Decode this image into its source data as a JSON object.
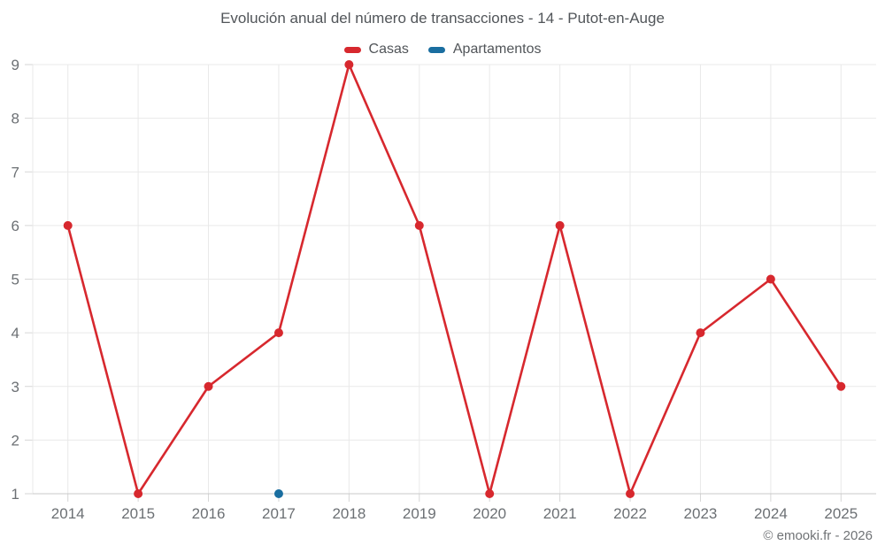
{
  "header": {
    "title": "Evolución anual del número de transacciones - 14 - Putot-en-Auge"
  },
  "legend": {
    "items": [
      {
        "label": "Casas",
        "color": "#d7282e"
      },
      {
        "label": "Apartamentos",
        "color": "#1a6ea0"
      }
    ]
  },
  "chart_data": {
    "type": "line",
    "title": "Evolución anual del número de transacciones - 14 - Putot-en-Auge",
    "categories": [
      "2014",
      "2015",
      "2016",
      "2017",
      "2018",
      "2019",
      "2020",
      "2021",
      "2022",
      "2023",
      "2024",
      "2025"
    ],
    "series": [
      {
        "name": "Casas",
        "color": "#d7282e",
        "values": [
          6,
          1,
          3,
          4,
          9,
          6,
          1,
          6,
          1,
          4,
          5,
          3
        ]
      },
      {
        "name": "Apartamentos",
        "color": "#1a6ea0",
        "values": [
          null,
          null,
          null,
          1,
          null,
          null,
          null,
          null,
          null,
          null,
          null,
          null
        ]
      }
    ],
    "xlabel": "",
    "ylabel": "",
    "ylim": [
      1,
      9
    ],
    "yticks": [
      1,
      2,
      3,
      4,
      5,
      6,
      7,
      8,
      9
    ],
    "grid": true,
    "legend_position": "top",
    "axis_colors": {
      "gridline": "#e9e9e9",
      "tick": "#d6d6d6",
      "axis_line": "#c9c9c9",
      "label_text": "#6c7074"
    }
  },
  "footer": {
    "credit": "© emooki.fr - 2026"
  }
}
